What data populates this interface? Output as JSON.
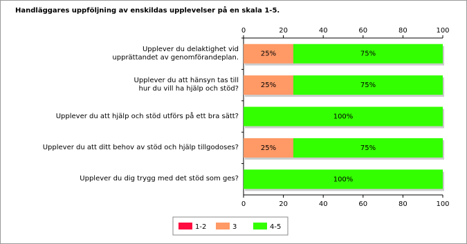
{
  "chart_data": {
    "type": "stacked-barh",
    "title": "Handläggares uppföljning av enskildas upplevelser på en skala 1-5.",
    "categories": [
      "Upplever du delaktighet vid\nupprättandet av genomförandeplan.",
      "Upplever du att hänsyn tas till\nhur du vill ha hjälp och stöd?",
      "Upplever du att  hjälp och stöd utförs på ett bra sätt?",
      "Upplever du att ditt behov av stöd och hjälp tillgodoses?",
      "Upplever du dig trygg med det stöd som ges?"
    ],
    "series": [
      {
        "name": "1-2",
        "color": "#ff0d40",
        "values": [
          0,
          0,
          0,
          0,
          0
        ]
      },
      {
        "name": "3",
        "color": "#ff9966",
        "values": [
          25,
          25,
          0,
          25,
          0
        ],
        "value_labels": [
          "25%",
          "25%",
          null,
          "25%",
          null
        ]
      },
      {
        "name": "4-5",
        "color": "#33ff00",
        "values": [
          75,
          75,
          100,
          75,
          100
        ],
        "value_labels": [
          "75%",
          "75%",
          "100%",
          "75%",
          "100%"
        ]
      }
    ],
    "xlim": [
      0,
      100
    ],
    "xticks": [
      0,
      20,
      40,
      60,
      80,
      100
    ]
  }
}
